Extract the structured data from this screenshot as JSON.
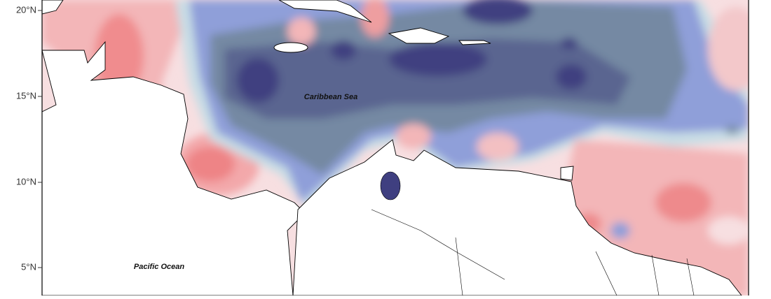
{
  "map": {
    "y_axis_labels": [
      "20°N",
      "15°N",
      "10°N",
      "5°N"
    ],
    "labels": [
      "Caribbean Sea",
      "Pacific Ocean"
    ]
  }
}
